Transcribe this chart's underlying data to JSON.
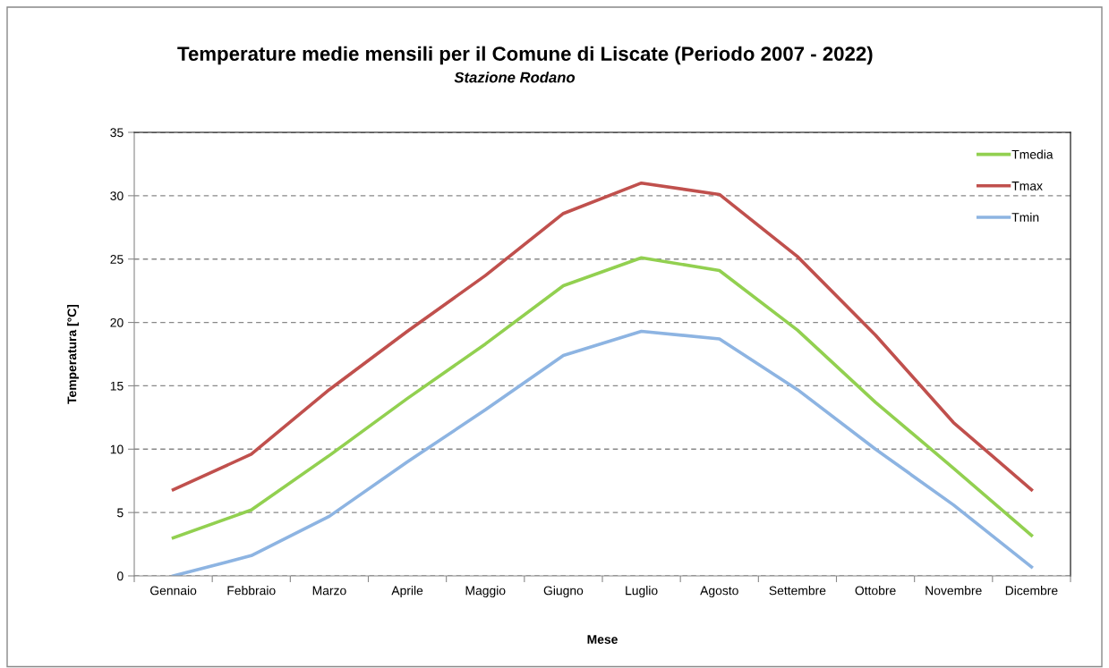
{
  "chart_data": {
    "type": "line",
    "title": "Temperature medie mensili per il Comune di Liscate (Periodo 2007 - 2022)",
    "subtitle": "Stazione Rodano",
    "xlabel": "Mese",
    "ylabel": "Temperatura [°C]",
    "categories": [
      "Gennaio",
      "Febbraio",
      "Marzo",
      "Aprile",
      "Maggio",
      "Giugno",
      "Luglio",
      "Agosto",
      "Settembre",
      "Ottobre",
      "Novembre",
      "Dicembre"
    ],
    "series": [
      {
        "name": "Tmedia",
        "color": "#92d050",
        "values": [
          3.0,
          5.2,
          9.5,
          14.0,
          18.3,
          22.9,
          25.1,
          24.1,
          19.4,
          13.7,
          8.5,
          3.2
        ]
      },
      {
        "name": "Tmax",
        "color": "#c0504d",
        "values": [
          6.8,
          9.6,
          14.7,
          19.3,
          23.7,
          28.6,
          31.0,
          30.1,
          25.2,
          19.0,
          12.1,
          6.8
        ]
      },
      {
        "name": "Tmin",
        "color": "#8db4e2",
        "values": [
          0.0,
          1.6,
          4.7,
          9.0,
          13.1,
          17.4,
          19.3,
          18.7,
          14.7,
          10.0,
          5.6,
          0.7
        ]
      }
    ],
    "ylim": [
      0,
      35
    ],
    "yticks": [
      0,
      5,
      10,
      15,
      20,
      25,
      30,
      35
    ],
    "grid": "y",
    "legend": "top right",
    "marker": "none",
    "line_style": "solid"
  }
}
